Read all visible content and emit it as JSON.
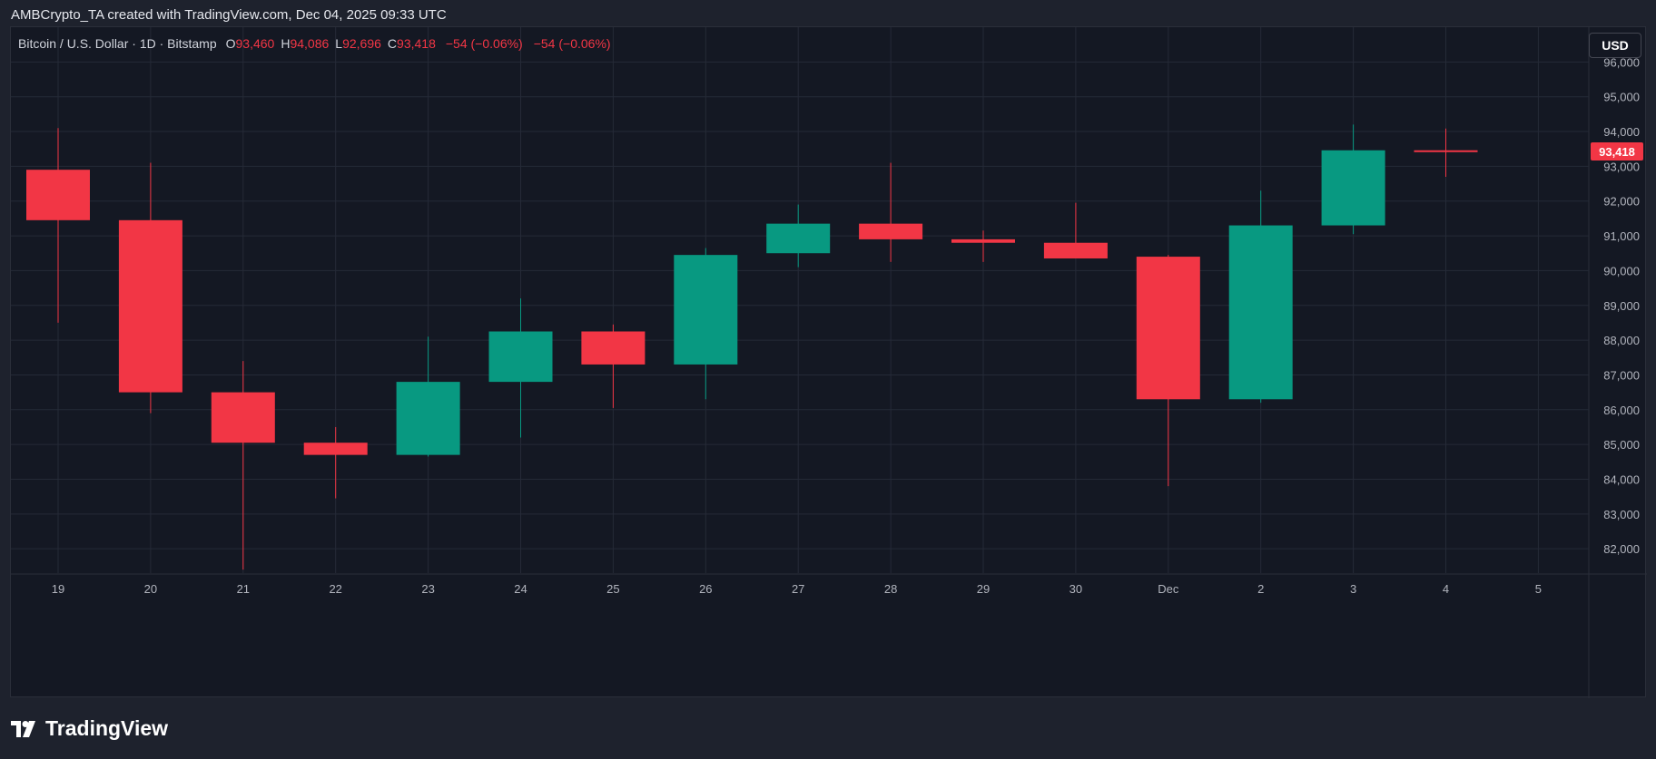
{
  "caption": "AMBCrypto_TA created with TradingView.com, Dec 04, 2025 09:33 UTC",
  "legend": {
    "symbol": "Bitcoin / U.S. Dollar · 1D · Bitstamp",
    "open_key": "O",
    "open": "93,460",
    "high_key": "H",
    "high": "94,086",
    "low_key": "L",
    "low": "92,696",
    "close_key": "C",
    "close": "93,418",
    "change": "−54 (−0.06%)",
    "change2": "−54 (−0.06%)"
  },
  "currency_button": "USD",
  "last_price_tag": "93,418",
  "logo_text": "TradingView",
  "colors": {
    "up": "#089981",
    "down": "#f23645",
    "background": "#141823",
    "grid": "#252a37",
    "axis_text": "#b2b5be"
  },
  "chart_data": {
    "type": "candlestick",
    "title": "",
    "xlabel": "",
    "ylabel": "",
    "ylim": [
      81300,
      97000
    ],
    "y_ticks": [
      82000,
      83000,
      84000,
      85000,
      86000,
      87000,
      88000,
      89000,
      90000,
      91000,
      92000,
      93000,
      94000,
      95000,
      96000
    ],
    "y_tick_labels": [
      "82,000",
      "83,000",
      "84,000",
      "85,000",
      "86,000",
      "87,000",
      "88,000",
      "89,000",
      "90,000",
      "91,000",
      "92,000",
      "93,000",
      "94,000",
      "95,000",
      "96,000"
    ],
    "x_labels": [
      "19",
      "20",
      "21",
      "22",
      "23",
      "24",
      "25",
      "26",
      "27",
      "28",
      "29",
      "30",
      "Dec",
      "2",
      "3",
      "4",
      "5"
    ],
    "last_price": 93418,
    "candles": [
      {
        "date": "19",
        "open": 92900,
        "high": 94100,
        "low": 88500,
        "close": 91450
      },
      {
        "date": "20",
        "open": 91450,
        "high": 93100,
        "low": 85900,
        "close": 86500
      },
      {
        "date": "21",
        "open": 86500,
        "high": 87400,
        "low": 81400,
        "close": 85050
      },
      {
        "date": "22",
        "open": 85050,
        "high": 85500,
        "low": 83450,
        "close": 84700
      },
      {
        "date": "23",
        "open": 84700,
        "high": 88100,
        "low": 84650,
        "close": 86800
      },
      {
        "date": "24",
        "open": 86800,
        "high": 89200,
        "low": 85200,
        "close": 88250
      },
      {
        "date": "25",
        "open": 88250,
        "high": 88450,
        "low": 86050,
        "close": 87300
      },
      {
        "date": "26",
        "open": 87300,
        "high": 90650,
        "low": 86300,
        "close": 90450
      },
      {
        "date": "27",
        "open": 90500,
        "high": 91900,
        "low": 90100,
        "close": 91350
      },
      {
        "date": "28",
        "open": 91350,
        "high": 93100,
        "low": 90250,
        "close": 90900
      },
      {
        "date": "29",
        "open": 90900,
        "high": 91150,
        "low": 90250,
        "close": 90800
      },
      {
        "date": "30",
        "open": 90800,
        "high": 91950,
        "low": 90350,
        "close": 90350
      },
      {
        "date": "Dec",
        "open": 90400,
        "high": 90450,
        "low": 83800,
        "close": 86300
      },
      {
        "date": "2",
        "open": 86300,
        "high": 92300,
        "low": 86200,
        "close": 91300
      },
      {
        "date": "3",
        "open": 91300,
        "high": 94200,
        "low": 91050,
        "close": 93460
      },
      {
        "date": "4",
        "open": 93460,
        "high": 94086,
        "low": 92696,
        "close": 93418
      }
    ]
  }
}
